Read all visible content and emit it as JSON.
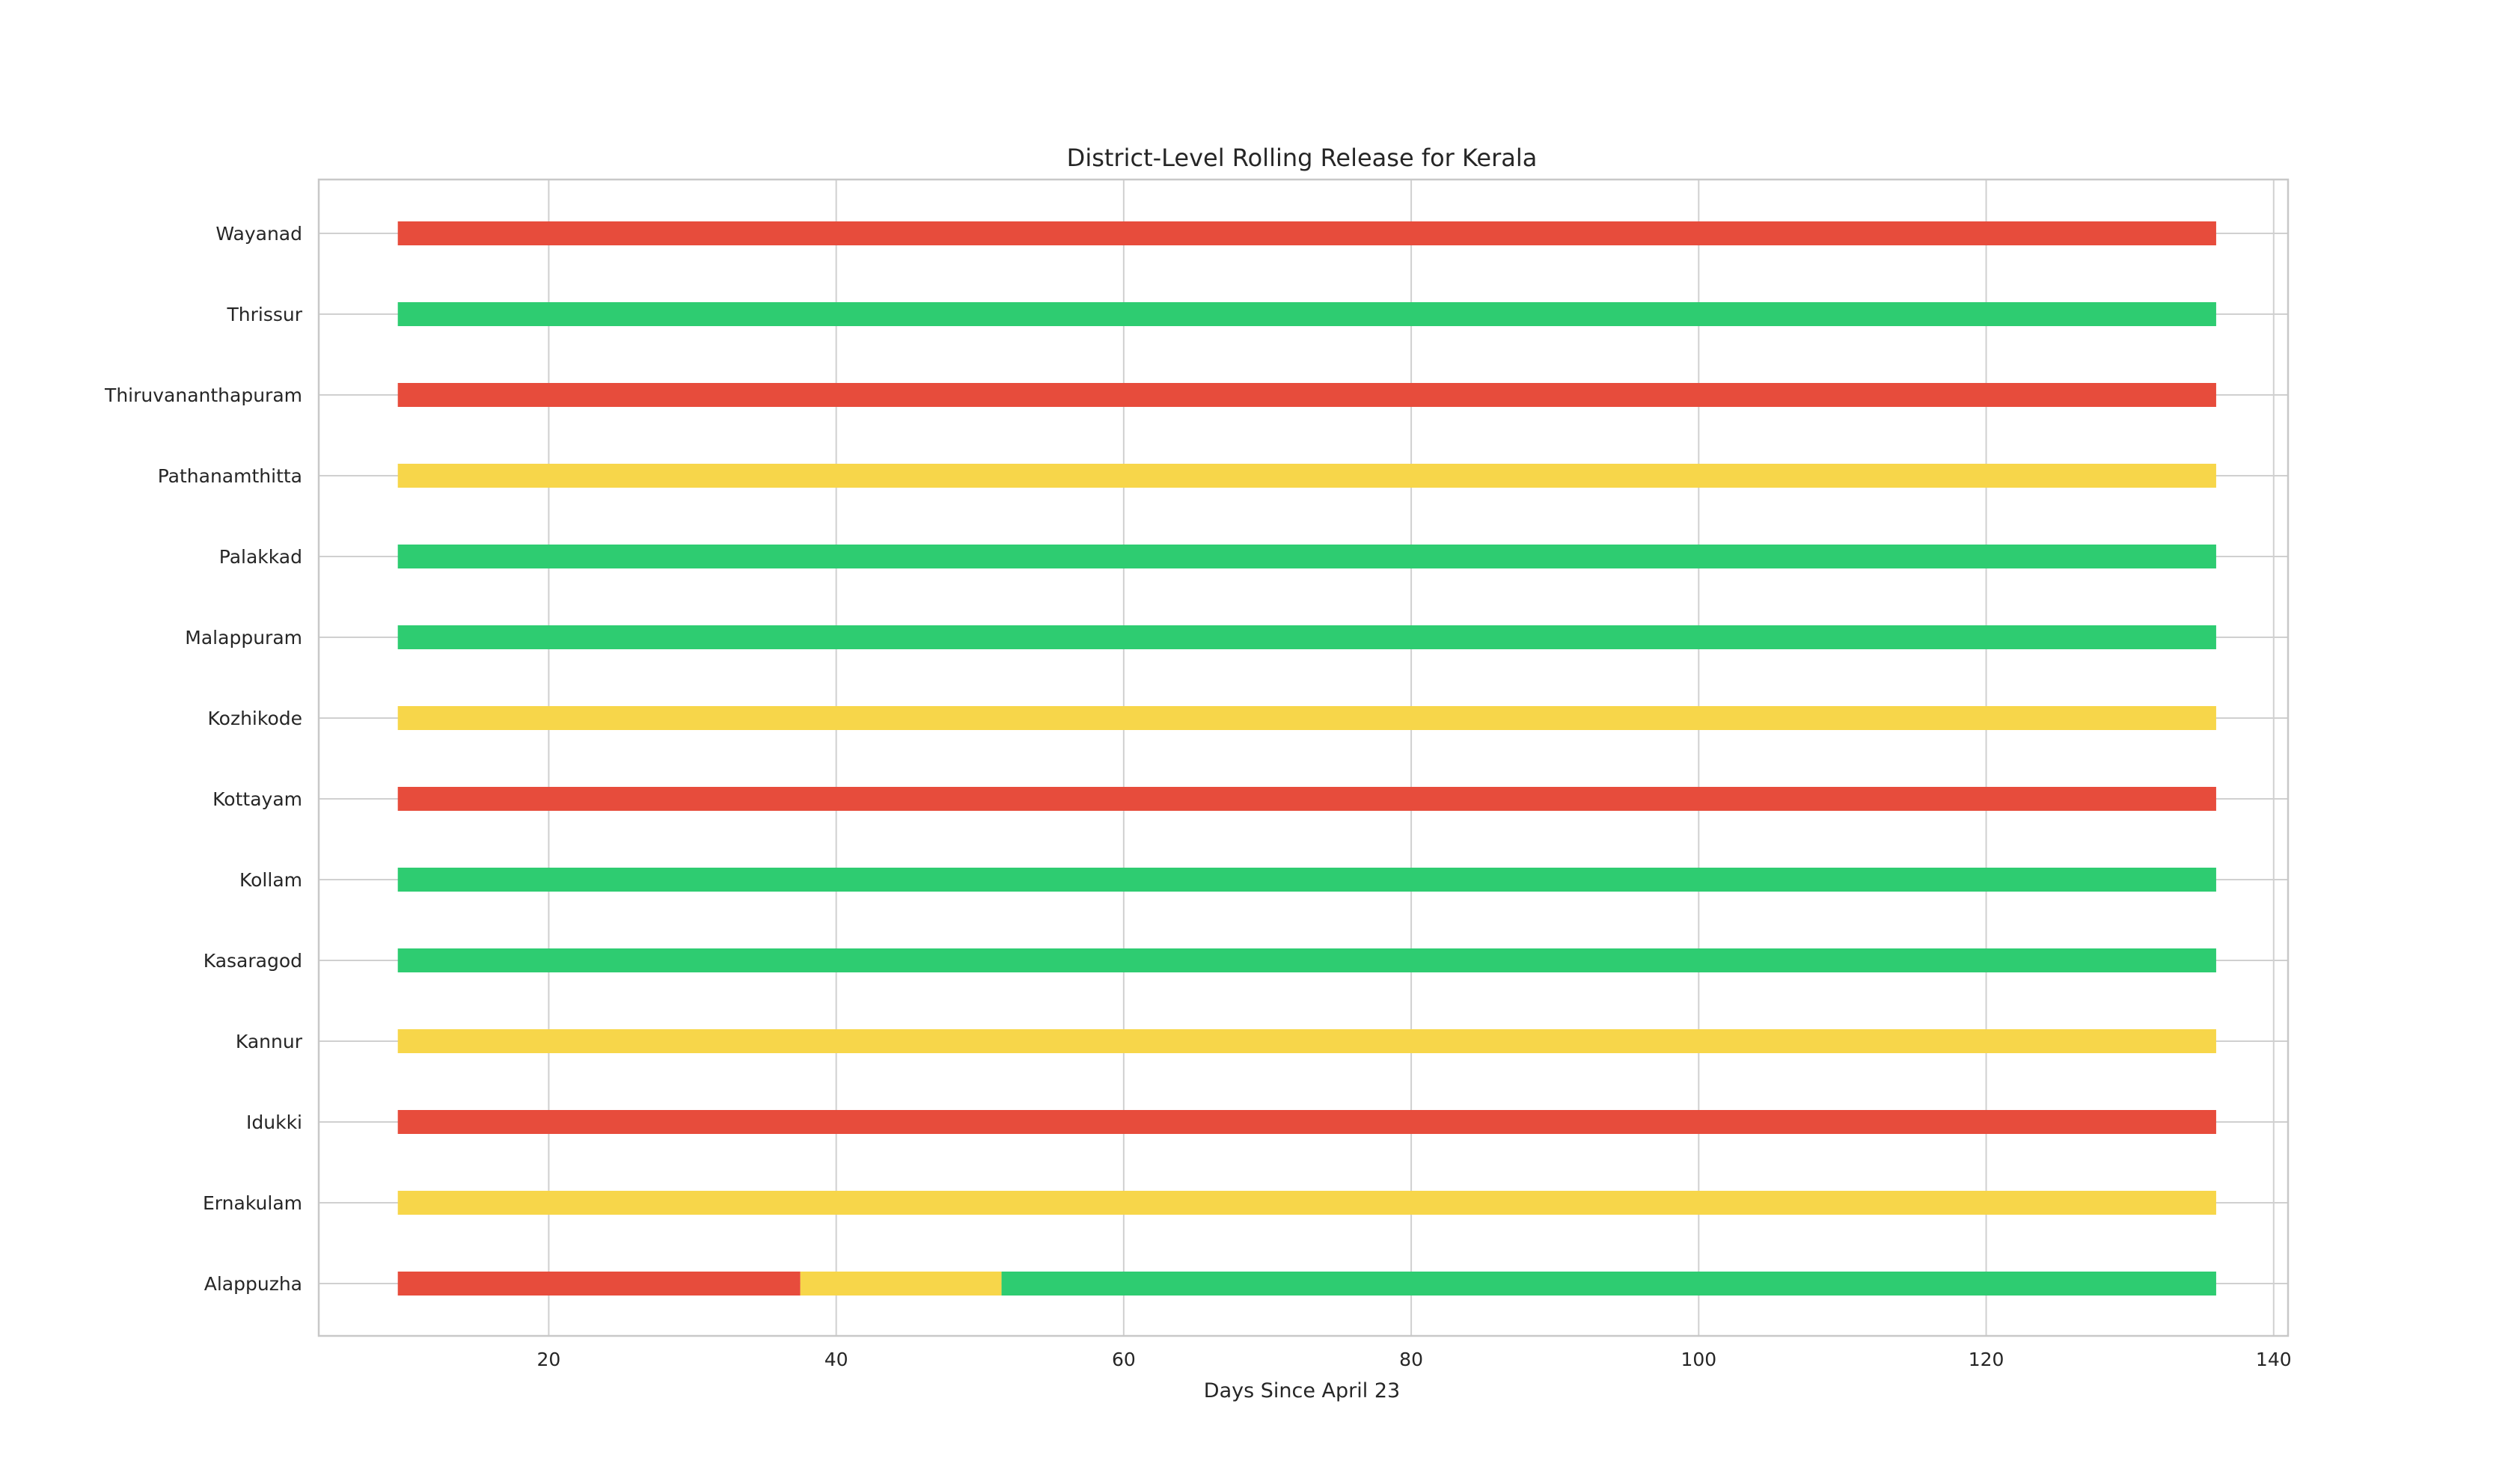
{
  "chart_data": {
    "type": "bar",
    "orientation": "horizontal-timeline",
    "title": "District-Level Rolling Release for Kerala",
    "xlabel": "Days Since April 23",
    "ylabel": "",
    "xlim": [
      4,
      141
    ],
    "xticks": [
      20,
      40,
      60,
      80,
      100,
      120,
      140
    ],
    "grid": true,
    "legend": "none",
    "colors": {
      "red": "#e74c3c",
      "yellow": "#f7d64a",
      "green": "#2ecc71"
    },
    "categories": [
      "Alappuzha",
      "Ernakulam",
      "Idukki",
      "Kannur",
      "Kasaragod",
      "Kollam",
      "Kottayam",
      "Kozhikode",
      "Malappuram",
      "Palakkad",
      "Pathanamthitta",
      "Thiruvananthapuram",
      "Thrissur",
      "Wayanad"
    ],
    "rows": [
      {
        "district": "Alappuzha",
        "segments": [
          {
            "start": 9.5,
            "end": 37.5,
            "color": "red"
          },
          {
            "start": 37.5,
            "end": 51.5,
            "color": "yellow"
          },
          {
            "start": 51.5,
            "end": 136,
            "color": "green"
          }
        ]
      },
      {
        "district": "Ernakulam",
        "segments": [
          {
            "start": 9.5,
            "end": 136,
            "color": "yellow"
          }
        ]
      },
      {
        "district": "Idukki",
        "segments": [
          {
            "start": 9.5,
            "end": 136,
            "color": "red"
          }
        ]
      },
      {
        "district": "Kannur",
        "segments": [
          {
            "start": 9.5,
            "end": 136,
            "color": "yellow"
          }
        ]
      },
      {
        "district": "Kasaragod",
        "segments": [
          {
            "start": 9.5,
            "end": 136,
            "color": "green"
          }
        ]
      },
      {
        "district": "Kollam",
        "segments": [
          {
            "start": 9.5,
            "end": 136,
            "color": "green"
          }
        ]
      },
      {
        "district": "Kottayam",
        "segments": [
          {
            "start": 9.5,
            "end": 136,
            "color": "red"
          }
        ]
      },
      {
        "district": "Kozhikode",
        "segments": [
          {
            "start": 9.5,
            "end": 136,
            "color": "yellow"
          }
        ]
      },
      {
        "district": "Malappuram",
        "segments": [
          {
            "start": 9.5,
            "end": 136,
            "color": "green"
          }
        ]
      },
      {
        "district": "Palakkad",
        "segments": [
          {
            "start": 9.5,
            "end": 136,
            "color": "green"
          }
        ]
      },
      {
        "district": "Pathanamthitta",
        "segments": [
          {
            "start": 9.5,
            "end": 136,
            "color": "yellow"
          }
        ]
      },
      {
        "district": "Thiruvananthapuram",
        "segments": [
          {
            "start": 9.5,
            "end": 136,
            "color": "red"
          }
        ]
      },
      {
        "district": "Thrissur",
        "segments": [
          {
            "start": 9.5,
            "end": 136,
            "color": "green"
          }
        ]
      },
      {
        "district": "Wayanad",
        "segments": [
          {
            "start": 9.5,
            "end": 136,
            "color": "red"
          }
        ]
      }
    ]
  }
}
